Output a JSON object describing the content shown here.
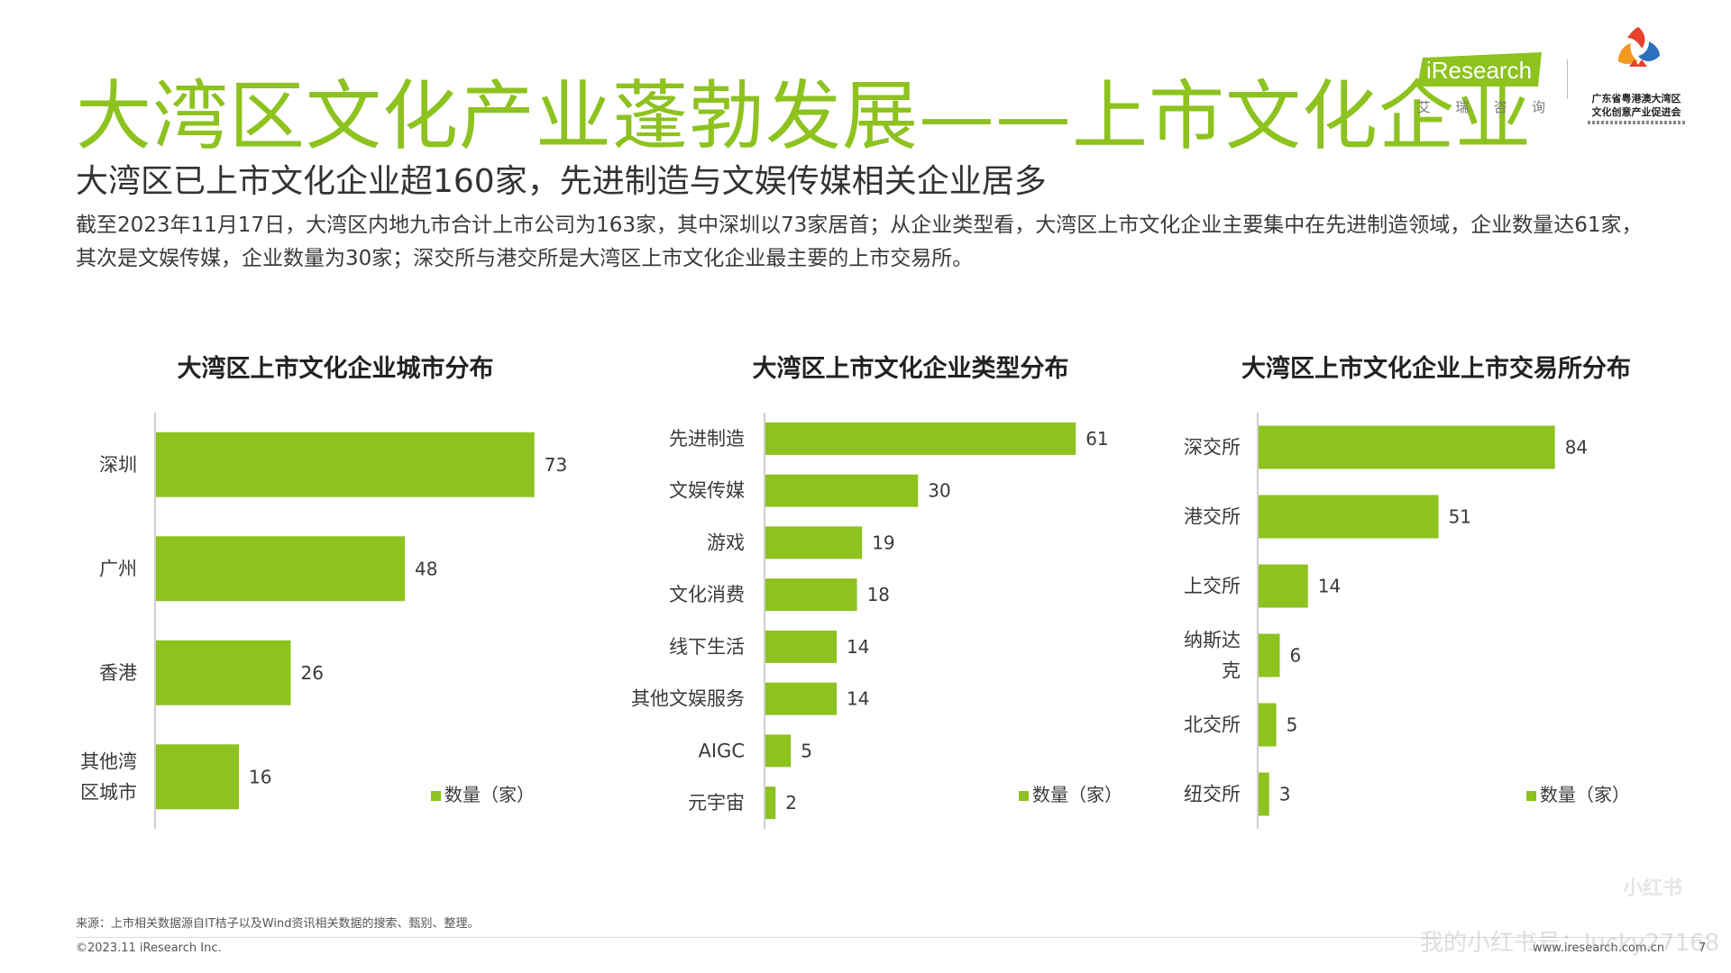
{
  "header": {
    "title": "大湾区文化产业蓬勃发展——上市文化企业",
    "subtitle": "大湾区已上市文化企业超160家，先进制造与文娱传媒相关企业居多",
    "description": "截至2023年11月17日，大湾区内地九市合计上市公司为163家，其中深圳以73家居首；从企业类型看，大湾区上市文化企业主要集中在先进制造领域，企业数量达61家，其次是文娱传媒，企业数量为30家；深交所与港交所是大湾区上市文化企业最主要的上市交易所。"
  },
  "logos": {
    "iresearch_name": "iResearch",
    "iresearch_cn": [
      "艾",
      "瑞",
      "咨",
      "询"
    ],
    "gd_name_line1": "广东省粤港澳大湾区",
    "gd_name_line2": "文化创意产业促进会"
  },
  "chart_data": [
    {
      "type": "bar",
      "orientation": "horizontal",
      "title": "大湾区上市文化企业城市分布",
      "categories": [
        "深圳",
        "广州",
        "香港",
        "其他湾区城市"
      ],
      "category_lines": [
        [
          "深圳"
        ],
        [
          "广州"
        ],
        [
          "香港"
        ],
        [
          "其他湾",
          "区城市"
        ]
      ],
      "series": [
        {
          "name": "数量（家）",
          "values": [
            73,
            48,
            26,
            16
          ]
        }
      ],
      "xlim": [
        0,
        80
      ],
      "legend": "bottom-right",
      "grid": false,
      "color": "#8dc21f"
    },
    {
      "type": "bar",
      "orientation": "horizontal",
      "title": "大湾区上市文化企业类型分布",
      "categories": [
        "先进制造",
        "文娱传媒",
        "游戏",
        "文化消费",
        "线下生活",
        "其他文娱服务",
        "AIGC",
        "元宇宙"
      ],
      "category_lines": [
        [
          "先进制造"
        ],
        [
          "文娱传媒"
        ],
        [
          "游戏"
        ],
        [
          "文化消费"
        ],
        [
          "线下生活"
        ],
        [
          "其他文娱服务"
        ],
        [
          "AIGC"
        ],
        [
          "元宇宙"
        ]
      ],
      "series": [
        {
          "name": "数量（家）",
          "values": [
            61,
            30,
            19,
            18,
            14,
            14,
            5,
            2
          ]
        }
      ],
      "xlim": [
        0,
        70
      ],
      "legend": "bottom-right",
      "grid": false,
      "color": "#8dc21f"
    },
    {
      "type": "bar",
      "orientation": "horizontal",
      "title": "大湾区上市文化企业上市交易所分布",
      "categories": [
        "深交所",
        "港交所",
        "上交所",
        "纳斯达克",
        "北交所",
        "纽交所"
      ],
      "category_lines": [
        [
          "深交所"
        ],
        [
          "港交所"
        ],
        [
          "上交所"
        ],
        [
          "纳斯达",
          "克"
        ],
        [
          "北交所"
        ],
        [
          "纽交所"
        ]
      ],
      "series": [
        {
          "name": "数量（家）",
          "values": [
            84,
            51,
            14,
            6,
            5,
            3
          ]
        }
      ],
      "xlim": [
        0,
        92
      ],
      "legend": "bottom-right",
      "grid": false,
      "color": "#8dc21f"
    }
  ],
  "footer": {
    "source": "来源：上市相关数据源自IT桔子以及Wind资讯相关数据的搜索、甄别、整理。",
    "copyright": "©2023.11 iResearch Inc.",
    "website": "www.iresearch.com.cn",
    "page_number": "7",
    "watermark": "我的小红书号：lucky27168",
    "watermark_logo": "小红书"
  },
  "colors": {
    "accent": "#8dc21f",
    "text": "#3a3a3a"
  }
}
